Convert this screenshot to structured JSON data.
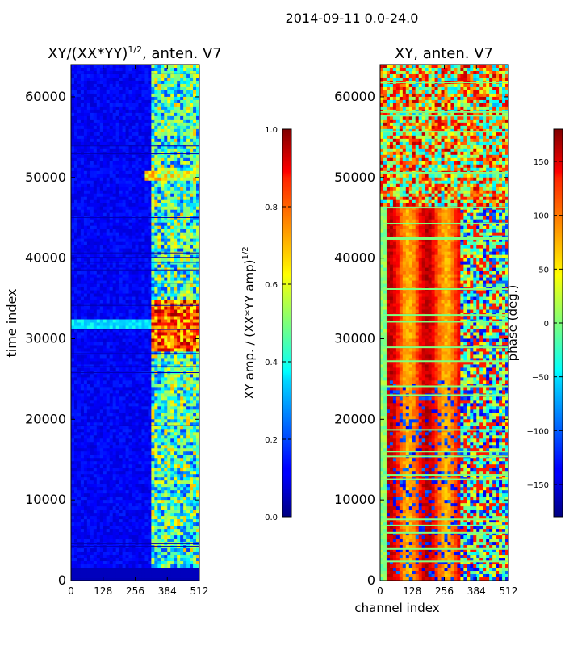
{
  "suptitle": "2014-09-11 0.0-24.0",
  "chart_data": [
    {
      "type": "heatmap",
      "title": "XY/(XX*YY)^{1/2}, anten. V7",
      "title_main": "XY/(XX*YY)",
      "title_sup": "1/2",
      "title_tail": ", anten. V7",
      "xlabel": "",
      "ylabel": "time index",
      "xlim": [
        0,
        512
      ],
      "ylim": [
        0,
        64000
      ],
      "xticks": [
        "0",
        "128",
        "256",
        "384",
        "512"
      ],
      "yticks": [
        "0",
        "10000",
        "20000",
        "30000",
        "40000",
        "50000",
        "60000"
      ],
      "colormap": "jet",
      "colorbar": {
        "label": "XY amp. / (XX*YY amp)^{1/2}",
        "label_main": "XY amp. / (XX*YY amp)",
        "label_sup": "1/2",
        "range": [
          0.0,
          1.0
        ],
        "ticks": [
          "0.0",
          "0.2",
          "0.4",
          "0.6",
          "0.8",
          "1.0"
        ]
      }
    },
    {
      "type": "heatmap",
      "title": "XY, anten. V7",
      "xlabel": "channel index",
      "ylabel": "",
      "xlim": [
        0,
        512
      ],
      "ylim": [
        0,
        64000
      ],
      "xticks": [
        "0",
        "128",
        "256",
        "384",
        "512"
      ],
      "yticks": [
        "0",
        "10000",
        "20000",
        "30000",
        "40000",
        "50000",
        "60000"
      ],
      "colormap": "jet",
      "colorbar": {
        "label": "phase (deg.)",
        "range": [
          -180,
          180
        ],
        "ticks": [
          "−150",
          "−100",
          "−50",
          "0",
          "50",
          "100",
          "150"
        ],
        "tick_values": [
          -150,
          -100,
          -50,
          0,
          50,
          100,
          150
        ]
      }
    }
  ]
}
